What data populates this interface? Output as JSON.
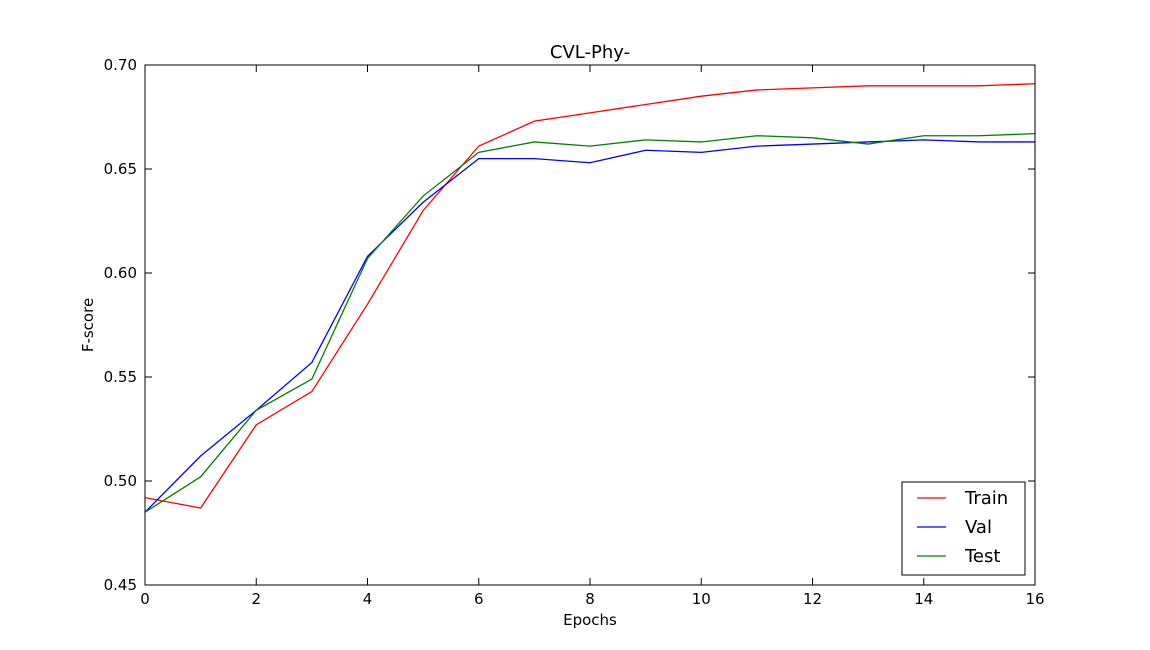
{
  "chart_data": {
    "type": "line",
    "title": "CVL-Phy-",
    "xlabel": "Epochs",
    "ylabel": "F-score",
    "xlim": [
      0,
      16
    ],
    "ylim": [
      0.45,
      0.7
    ],
    "xticks": [
      0,
      2,
      4,
      6,
      8,
      10,
      12,
      14,
      16
    ],
    "xtick_labels": [
      "0",
      "2",
      "4",
      "6",
      "8",
      "10",
      "12",
      "14",
      "16"
    ],
    "yticks": [
      0.45,
      0.5,
      0.55,
      0.6,
      0.65,
      0.7
    ],
    "ytick_labels": [
      "0.45",
      "0.50",
      "0.55",
      "0.60",
      "0.65",
      "0.70"
    ],
    "grid": false,
    "legend_position": "lower-right",
    "x": [
      0,
      1,
      2,
      3,
      4,
      5,
      6,
      7,
      8,
      9,
      10,
      11,
      12,
      13,
      14,
      15,
      16
    ],
    "series": [
      {
        "name": "Train",
        "color": "#ff0000",
        "values": [
          0.492,
          0.487,
          0.527,
          0.543,
          0.585,
          0.63,
          0.661,
          0.673,
          0.677,
          0.681,
          0.685,
          0.688,
          0.689,
          0.69,
          0.69,
          0.69,
          0.691
        ]
      },
      {
        "name": "Val",
        "color": "#0000ff",
        "values": [
          0.485,
          0.512,
          0.534,
          0.557,
          0.608,
          0.634,
          0.655,
          0.655,
          0.653,
          0.659,
          0.658,
          0.661,
          0.662,
          0.663,
          0.664,
          0.663,
          0.663
        ]
      },
      {
        "name": "Test",
        "color": "#008000",
        "values": [
          0.485,
          0.502,
          0.534,
          0.549,
          0.607,
          0.637,
          0.658,
          0.663,
          0.661,
          0.664,
          0.663,
          0.666,
          0.665,
          0.662,
          0.666,
          0.666,
          0.667
        ]
      }
    ]
  }
}
